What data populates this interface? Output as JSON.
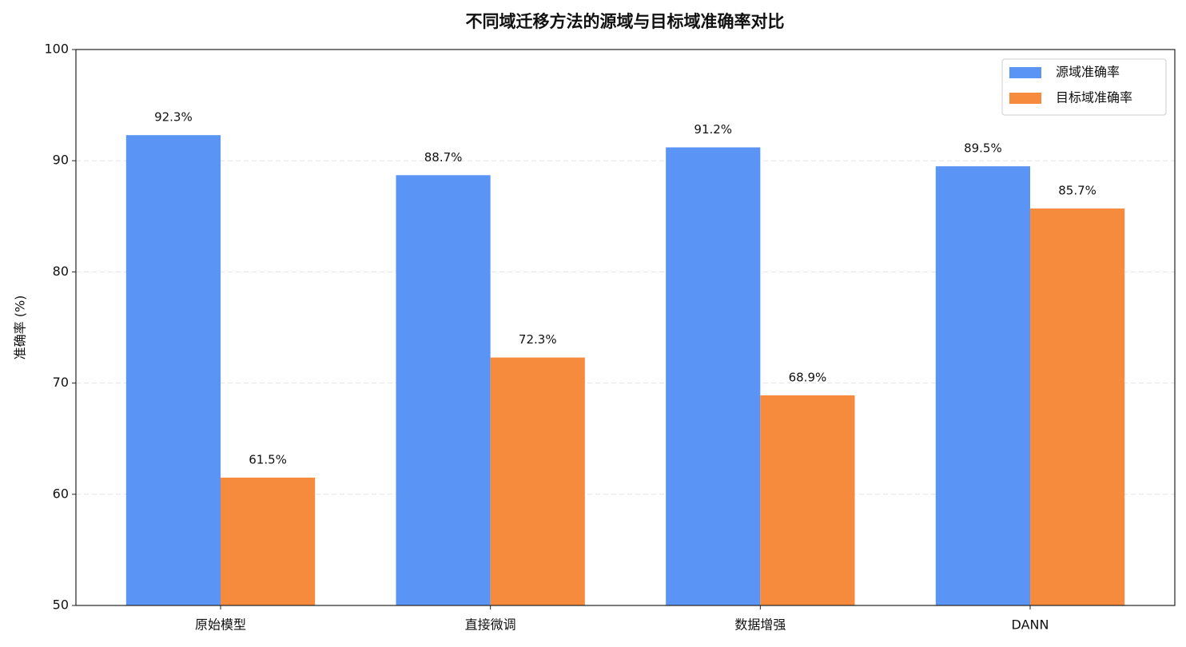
{
  "chart_data": {
    "type": "bar",
    "title": "不同域迁移方法的源域与目标域准确率对比",
    "y_label": "准确率 (%)",
    "categories": [
      "原始模型",
      "直接微调",
      "数据增强",
      "DANN"
    ],
    "series": [
      {
        "name": "源域准确率",
        "color": "#5a94f5",
        "values": [
          92.3,
          88.7,
          91.2,
          89.5
        ],
        "value_labels": [
          "92.3%",
          "88.7%",
          "91.2%",
          "89.5%"
        ]
      },
      {
        "name": "目标域准确率",
        "color": "#f68a3d",
        "values": [
          61.5,
          72.3,
          68.9,
          85.7
        ],
        "value_labels": [
          "61.5%",
          "72.3%",
          "68.9%",
          "85.7%"
        ]
      }
    ],
    "ylim": [
      50,
      100
    ],
    "yticks": [
      50,
      60,
      70,
      80,
      90,
      100
    ],
    "grid": true,
    "legend": "upper right"
  }
}
